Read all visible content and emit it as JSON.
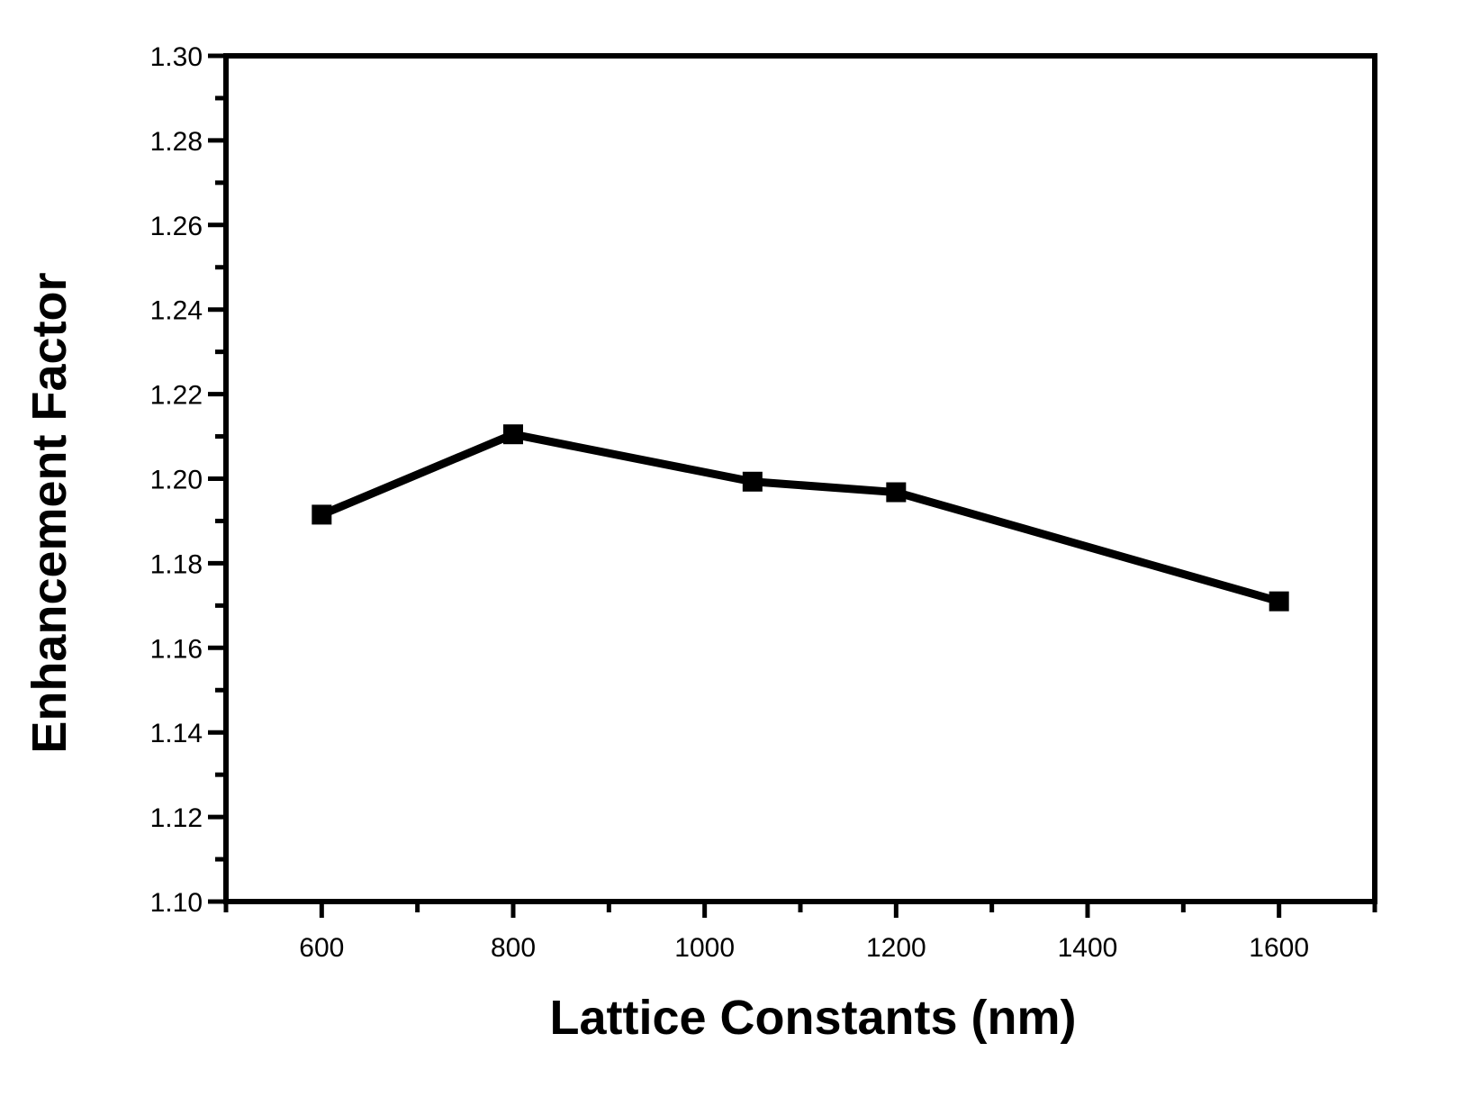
{
  "chart_data": {
    "type": "line",
    "title": "",
    "xlabel": "Lattice Constants (nm)",
    "ylabel": "Enhancement Factor",
    "xlim": [
      500,
      1700
    ],
    "ylim": [
      1.1,
      1.3
    ],
    "x_ticks": [
      600,
      800,
      1000,
      1200,
      1400,
      1600
    ],
    "x_tick_labels": [
      "600",
      "800",
      "1000",
      "1200",
      "1400",
      "1600"
    ],
    "y_ticks": [
      1.1,
      1.12,
      1.14,
      1.16,
      1.18,
      1.2,
      1.22,
      1.24,
      1.26,
      1.28,
      1.3
    ],
    "y_tick_labels": [
      "1.10",
      "1.12",
      "1.14",
      "1.16",
      "1.18",
      "1.20",
      "1.22",
      "1.24",
      "1.26",
      "1.28",
      "1.30"
    ],
    "grid": false,
    "legend": "none",
    "marker": "square",
    "line_color": "#000000",
    "series": [
      {
        "x": [
          600,
          800,
          1050,
          1200,
          1600
        ],
        "y": [
          1.1915,
          1.2105,
          1.1993,
          1.1968,
          1.171
        ]
      }
    ]
  }
}
